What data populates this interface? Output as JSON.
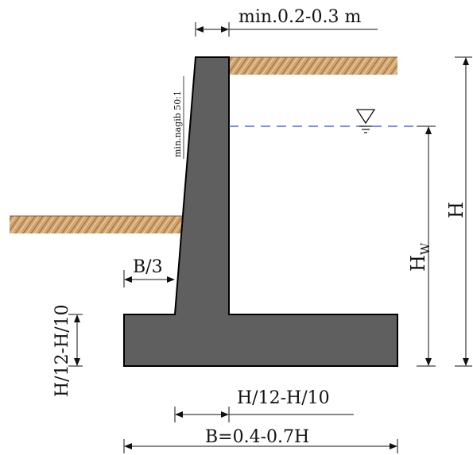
{
  "labels": {
    "top_thickness": "min.0.2-0.3 m",
    "batter": "min.nagib 50:1",
    "toe_width": "B/3",
    "footing_thickness_left": "H/12-H/10",
    "footing_thickness_bottom": "H/12-H/10",
    "base_width": "B=0.4-0.7H",
    "total_height": "H",
    "water_height_main": "H",
    "water_height_sub": "W"
  },
  "colors": {
    "concrete_fill": "#5f5f5f",
    "outline": "#000000",
    "soil_fill": "#d2a56e",
    "soil_hatch": "#8a5a2b",
    "water_line": "#2f4fe0",
    "dimension_line": "#111111"
  },
  "icons": {
    "water_level": "water-level-triangle-icon"
  }
}
